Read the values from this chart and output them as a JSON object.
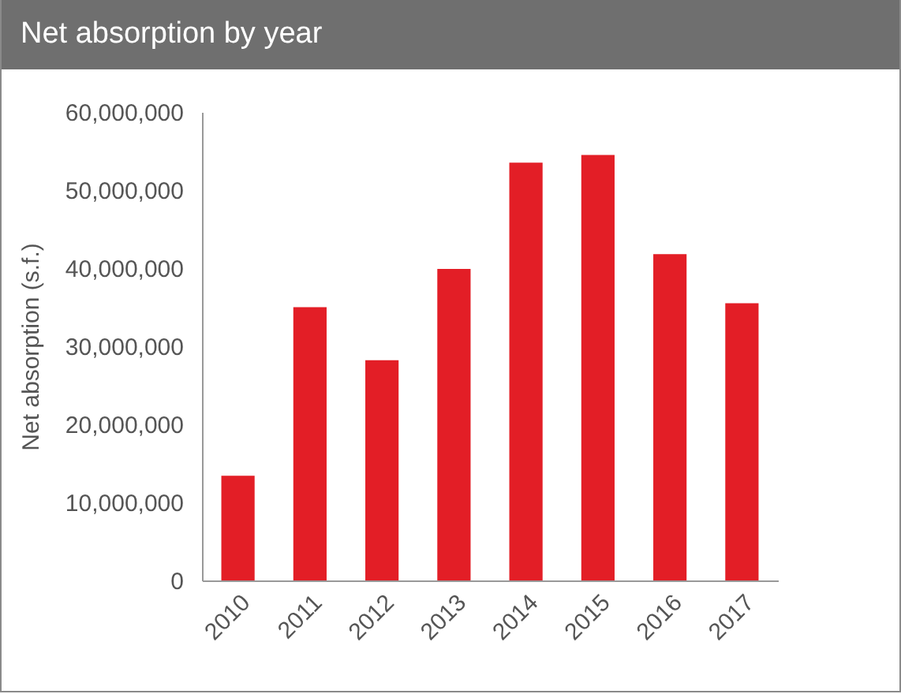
{
  "chart_data": {
    "type": "bar",
    "title": "Net absorption by year",
    "ylabel": "Net absorption (s.f.)",
    "categories": [
      "2010",
      "2011",
      "2012",
      "2013",
      "2014",
      "2015",
      "2016",
      "2017"
    ],
    "values": [
      13400000,
      35000000,
      28200000,
      39900000,
      53500000,
      54500000,
      41800000,
      35500000
    ],
    "color": "#e31e26",
    "ylim": [
      0,
      60000000
    ],
    "yticks": [
      0,
      {
        "value": 10000000,
        "label": "10,000,000"
      },
      {
        "value": 20000000,
        "label": "20,000,000"
      },
      {
        "value": 30000000,
        "label": "30,000,000"
      },
      {
        "value": 40000000,
        "label": "40,000,000"
      },
      {
        "value": 50000000,
        "label": "50,000,000"
      },
      {
        "value": 60000000,
        "label": "60,000,000"
      }
    ],
    "grid": false
  }
}
